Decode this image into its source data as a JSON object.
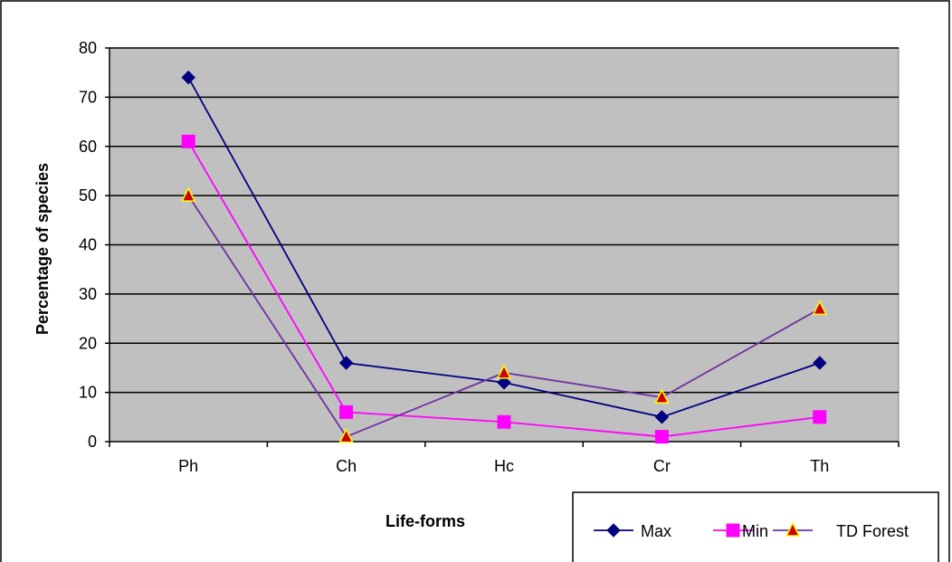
{
  "chart_data": {
    "type": "line",
    "title": "",
    "xlabel": "Life-forms",
    "ylabel": "Percentage of species",
    "categories": [
      "Ph",
      "Ch",
      "Hc",
      "Cr",
      "Th"
    ],
    "ylim": [
      0,
      80
    ],
    "yticks": [
      0,
      10,
      20,
      30,
      40,
      50,
      60,
      70,
      80
    ],
    "grid": true,
    "legend_position": "bottom-right",
    "plot_background": "#c0c0c0",
    "series": [
      {
        "name": "Max",
        "values": [
          74,
          16,
          12,
          5,
          16
        ],
        "color": "#000080",
        "marker": "diamond"
      },
      {
        "name": "Min",
        "values": [
          61,
          6,
          4,
          1,
          5
        ],
        "color": "#ff00ff",
        "marker": "square"
      },
      {
        "name": "TD Forest",
        "values": [
          50,
          1,
          14,
          9,
          27
        ],
        "color": "#7030a0",
        "marker": "triangle",
        "marker_fill": "#cc0000",
        "marker_edge": "#ffff00"
      }
    ]
  }
}
